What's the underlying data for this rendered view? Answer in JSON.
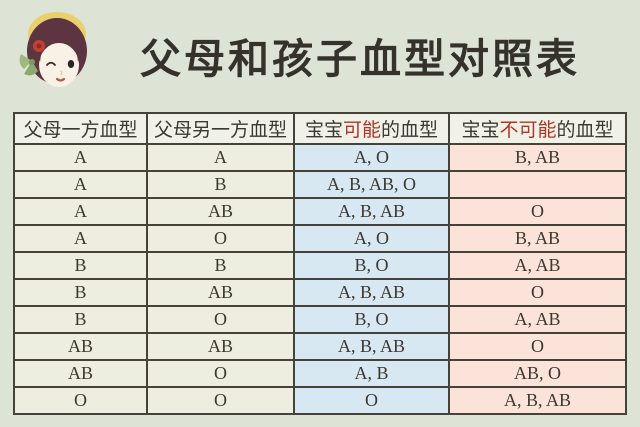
{
  "page": {
    "title": "父母和孩子血型对照表",
    "background": "#dee4d5"
  },
  "avatar": {
    "icon": "girl-avatar-icon"
  },
  "colors": {
    "page_background": "#dee4d5",
    "header_cell_background": "#f1f2e7",
    "parent_cell_background": "#edeedf",
    "possible_column_background": "#d8e8f2",
    "impossible_column_background": "#fbe3d9",
    "border": "#45423a",
    "text": "#3b3831",
    "accent_red": "#b03528"
  },
  "chart_data": {
    "type": "table",
    "title": "父母和孩子血型对照表",
    "columns": [
      {
        "pre": "父母一方血型",
        "highlight": "",
        "post": ""
      },
      {
        "pre": "父母另一方血型",
        "highlight": "",
        "post": ""
      },
      {
        "pre": "宝宝",
        "highlight": "可能",
        "post": "的血型"
      },
      {
        "pre": "宝宝",
        "highlight": "不可能",
        "post": "的血型"
      }
    ],
    "rows": [
      [
        "A",
        "A",
        "A, O",
        "B, AB"
      ],
      [
        "A",
        "B",
        "A, B, AB, O",
        ""
      ],
      [
        "A",
        "AB",
        "A, B, AB",
        "O"
      ],
      [
        "A",
        "O",
        "A, O",
        "B, AB"
      ],
      [
        "B",
        "B",
        "B, O",
        "A, AB"
      ],
      [
        "B",
        "AB",
        "A, B, AB",
        "O"
      ],
      [
        "B",
        "O",
        "B, O",
        "A, AB"
      ],
      [
        "AB",
        "AB",
        "A, B, AB",
        "O"
      ],
      [
        "AB",
        "O",
        "A, B",
        "AB, O"
      ],
      [
        "O",
        "O",
        "O",
        "A, B, AB"
      ]
    ]
  }
}
